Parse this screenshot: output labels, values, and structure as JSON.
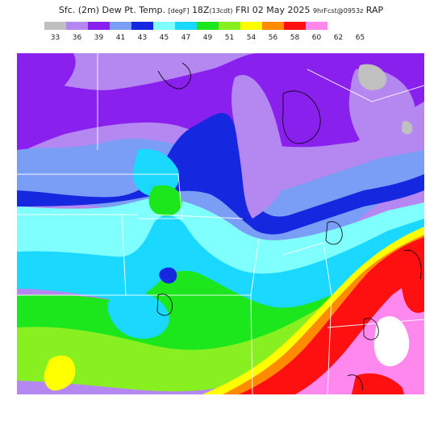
{
  "title": {
    "main": "Sfc. (2m) Dew Pt. Temp.",
    "unit": "[degF]",
    "time": "18Z",
    "local": "(13cdt)",
    "date": "FRI 02 May 2025",
    "run": "9hrFcst@0953z",
    "model": "RAP"
  },
  "legend": {
    "labels": [
      "33",
      "36",
      "39",
      "41",
      "43",
      "45",
      "47",
      "49",
      "51",
      "54",
      "56",
      "58",
      "60",
      "62",
      "65"
    ],
    "colors": [
      "#c0c0c0",
      "#b488f0",
      "#8a20ee",
      "#7a9ef5",
      "#1528e0",
      "#80ffff",
      "#1ad8ff",
      "#1ce61c",
      "#88f020",
      "#ffff00",
      "#ff8c00",
      "#ff1010",
      "#ff88ee"
    ]
  },
  "map": {
    "colors": {
      "gray": "#c0c0c0",
      "lavender": "#b488f0",
      "purple": "#8a20ee",
      "lightblue": "#7a9ef5",
      "blue": "#1528e0",
      "palecyan": "#80ffff",
      "cyan": "#1ad8ff",
      "green": "#1ce61c",
      "lime": "#88f020",
      "yellow": "#ffff00",
      "orange": "#ff8c00",
      "red": "#ff1010",
      "pink": "#ff88ee",
      "white": "#ffffff"
    }
  }
}
